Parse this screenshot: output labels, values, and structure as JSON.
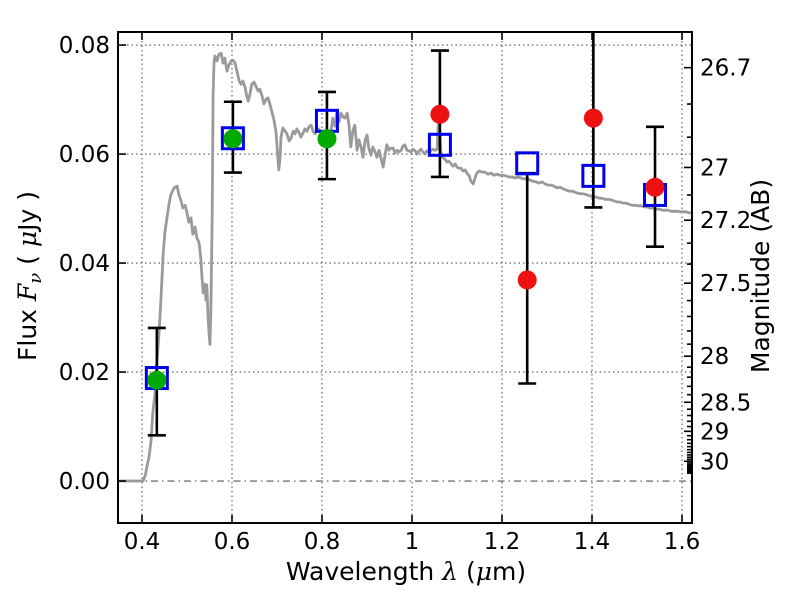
{
  "chart_data": {
    "type": "line+scatter",
    "title": "",
    "description": "Galaxy SED: gray model spectrum, green filled circles (observed optical photometry), red filled circles (observed IR photometry), blue open squares (model photometry), black error bars; flux vs wavelength with AB magnitude axis on the right",
    "xlabel_parts": [
      {
        "text": "Wavelength ",
        "style": "plain"
      },
      {
        "text": "λ",
        "style": "math"
      },
      {
        "text": " (",
        "style": "plain"
      },
      {
        "text": "μ",
        "style": "math"
      },
      {
        "text": "m)",
        "style": "plain"
      }
    ],
    "ylabel_left_parts": [
      {
        "text": "Flux ",
        "style": "plain"
      },
      {
        "text": "F",
        "style": "math"
      },
      {
        "text": "ν",
        "style": "mathsub"
      },
      {
        "text": " ( ",
        "style": "plain"
      },
      {
        "text": "μ",
        "style": "math"
      },
      {
        "text": "Jy )",
        "style": "plain"
      }
    ],
    "ylabel_right": "Magnitude (AB)",
    "xlim": [
      0.3467,
      1.6222
    ],
    "ylim": [
      -0.0077,
      0.0824
    ],
    "ab_zeropoint_ujy": 23.9,
    "x_ticks": [
      {
        "label": "0.4",
        "value": 0.4
      },
      {
        "label": "0.6",
        "value": 0.6
      },
      {
        "label": "0.8",
        "value": 0.8
      },
      {
        "label": "1",
        "value": 1.0
      },
      {
        "label": "1.2",
        "value": 1.2
      },
      {
        "label": "1.4",
        "value": 1.4
      },
      {
        "label": "1.6",
        "value": 1.6
      }
    ],
    "y_ticks_left": [
      {
        "label": "0.00",
        "value": 0.0
      },
      {
        "label": "0.02",
        "value": 0.02
      },
      {
        "label": "0.04",
        "value": 0.04
      },
      {
        "label": "0.06",
        "value": 0.06
      },
      {
        "label": "0.08",
        "value": 0.08
      }
    ],
    "y_ticks_right": [
      {
        "label": "26.7",
        "mag": 26.7
      },
      {
        "label": "27",
        "mag": 27.0
      },
      {
        "label": "27.2",
        "mag": 27.2
      },
      {
        "label": "27.5",
        "mag": 27.5
      },
      {
        "label": "28",
        "mag": 28.0
      },
      {
        "label": "28.5",
        "mag": 28.5
      },
      {
        "label": "29",
        "mag": 29.0
      },
      {
        "label": "30",
        "mag": 30.0
      }
    ],
    "y_minor_ticks_right_mag": [
      26.8,
      26.9,
      27.1,
      27.3,
      27.4,
      27.6,
      27.7,
      27.8,
      27.9,
      28.1,
      28.2,
      28.3,
      28.4,
      28.6,
      28.7,
      28.8,
      28.9,
      29.1,
      29.2,
      29.3,
      29.4,
      29.5,
      29.6,
      29.7,
      29.8,
      29.9,
      30.1,
      30.2,
      30.3,
      30.4,
      30.5,
      30.6,
      30.7,
      30.8,
      30.9,
      31.0
    ],
    "grid": {
      "x_values": [
        0.4,
        0.6,
        0.8,
        1.0,
        1.2,
        1.4,
        1.6
      ],
      "y_dotted_values": [
        0.02,
        0.04,
        0.06,
        0.08
      ],
      "y_dashdot_value": 0.0
    },
    "colors": {
      "spectrum": "#9a9a9a",
      "square_edge": "#0000ee",
      "green": "#00aa00",
      "red": "#ee1111",
      "errorbar": "#000000",
      "text": "#000000",
      "background": "#ffffff"
    },
    "points": [
      {
        "x": 0.433,
        "square": 0.0189,
        "circle": 0.0185,
        "circle_color": "green",
        "err_lo": 0.0084,
        "err_hi": 0.0281,
        "cap_lo": true,
        "cap_hi": true
      },
      {
        "x": 0.602,
        "square": 0.0629,
        "circle": 0.0628,
        "circle_color": "green",
        "err_lo": 0.0566,
        "err_hi": 0.0696,
        "cap_lo": true,
        "cap_hi": true
      },
      {
        "x": 0.811,
        "square": 0.0661,
        "circle": 0.0628,
        "circle_color": "green",
        "err_lo": 0.0554,
        "err_hi": 0.0714,
        "cap_lo": true,
        "cap_hi": true
      },
      {
        "x": 1.062,
        "square": 0.0617,
        "circle": 0.0673,
        "circle_color": "red",
        "err_lo": 0.0558,
        "err_hi": 0.079,
        "cap_lo": true,
        "cap_hi": true
      },
      {
        "x": 1.256,
        "square": 0.0583,
        "circle": 0.0369,
        "circle_color": "red",
        "err_lo": 0.0179,
        "err_hi": 0.0565,
        "cap_lo": true,
        "cap_hi": true
      },
      {
        "x": 1.403,
        "square": 0.056,
        "circle": 0.0666,
        "circle_color": "red",
        "err_lo": 0.0502,
        "err_hi": 0.092,
        "cap_lo": true,
        "cap_hi": false
      },
      {
        "x": 1.54,
        "square": 0.0525,
        "circle": 0.0539,
        "circle_color": "red",
        "err_lo": 0.043,
        "err_hi": 0.065,
        "cap_lo": true,
        "cap_hi": true
      }
    ],
    "spectrum": [
      [
        0.347,
        0
      ],
      [
        0.402,
        0
      ],
      [
        0.407,
        0.0009
      ],
      [
        0.411,
        0.0026
      ],
      [
        0.416,
        0.0046
      ],
      [
        0.42,
        0.0073
      ],
      [
        0.424,
        0.0125
      ],
      [
        0.429,
        0.016
      ],
      [
        0.433,
        0.0215
      ],
      [
        0.438,
        0.0273
      ],
      [
        0.442,
        0.0332
      ],
      [
        0.447,
        0.0415
      ],
      [
        0.451,
        0.0457
      ],
      [
        0.456,
        0.0486
      ],
      [
        0.46,
        0.0508
      ],
      [
        0.464,
        0.0525
      ],
      [
        0.469,
        0.0534
      ],
      [
        0.473,
        0.0539
      ],
      [
        0.478,
        0.0541
      ],
      [
        0.482,
        0.0525
      ],
      [
        0.487,
        0.0514
      ],
      [
        0.491,
        0.0501
      ],
      [
        0.496,
        0.0506
      ],
      [
        0.5,
        0.0492
      ],
      [
        0.504,
        0.0475
      ],
      [
        0.509,
        0.0483
      ],
      [
        0.513,
        0.0453
      ],
      [
        0.518,
        0.0466
      ],
      [
        0.522,
        0.0446
      ],
      [
        0.527,
        0.0437
      ],
      [
        0.531,
        0.0407
      ],
      [
        0.533,
        0.0378
      ],
      [
        0.536,
        0.0345
      ],
      [
        0.54,
        0.0361
      ],
      [
        0.542,
        0.0332
      ],
      [
        0.544,
        0.036
      ],
      [
        0.547,
        0.0299
      ],
      [
        0.549,
        0.0273
      ],
      [
        0.551,
        0.0251
      ],
      [
        0.553,
        0.0305
      ],
      [
        0.556,
        0.0488
      ],
      [
        0.558,
        0.0708
      ],
      [
        0.56,
        0.0767
      ],
      [
        0.562,
        0.078
      ],
      [
        0.567,
        0.0771
      ],
      [
        0.571,
        0.0783
      ],
      [
        0.576,
        0.0785
      ],
      [
        0.58,
        0.0767
      ],
      [
        0.584,
        0.0776
      ],
      [
        0.589,
        0.0752
      ],
      [
        0.593,
        0.0763
      ],
      [
        0.598,
        0.0771
      ],
      [
        0.602,
        0.0772
      ],
      [
        0.607,
        0.0767
      ],
      [
        0.611,
        0.0752
      ],
      [
        0.616,
        0.0734
      ],
      [
        0.62,
        0.0728
      ],
      [
        0.624,
        0.0734
      ],
      [
        0.629,
        0.0723
      ],
      [
        0.633,
        0.0706
      ],
      [
        0.636,
        0.0697
      ],
      [
        0.64,
        0.071
      ],
      [
        0.644,
        0.0728
      ],
      [
        0.649,
        0.0732
      ],
      [
        0.653,
        0.0725
      ],
      [
        0.658,
        0.0716
      ],
      [
        0.662,
        0.0719
      ],
      [
        0.667,
        0.0706
      ],
      [
        0.671,
        0.0692
      ],
      [
        0.676,
        0.0701
      ],
      [
        0.68,
        0.0703
      ],
      [
        0.684,
        0.0692
      ],
      [
        0.689,
        0.0677
      ],
      [
        0.693,
        0.0664
      ],
      [
        0.698,
        0.0639
      ],
      [
        0.7,
        0.0615
      ],
      [
        0.702,
        0.0593
      ],
      [
        0.704,
        0.0571
      ],
      [
        0.707,
        0.0594
      ],
      [
        0.709,
        0.0631
      ],
      [
        0.713,
        0.0648
      ],
      [
        0.718,
        0.0642
      ],
      [
        0.722,
        0.0637
      ],
      [
        0.727,
        0.0624
      ],
      [
        0.731,
        0.0629
      ],
      [
        0.736,
        0.0642
      ],
      [
        0.74,
        0.0637
      ],
      [
        0.744,
        0.0646
      ],
      [
        0.749,
        0.064
      ],
      [
        0.753,
        0.0631
      ],
      [
        0.758,
        0.0639
      ],
      [
        0.762,
        0.0646
      ],
      [
        0.767,
        0.0642
      ],
      [
        0.771,
        0.065
      ],
      [
        0.776,
        0.0653
      ],
      [
        0.78,
        0.0642
      ],
      [
        0.784,
        0.0637
      ],
      [
        0.789,
        0.0642
      ],
      [
        0.793,
        0.0646
      ],
      [
        0.798,
        0.0639
      ],
      [
        0.802,
        0.0633
      ],
      [
        0.807,
        0.0624
      ],
      [
        0.811,
        0.0618
      ],
      [
        0.816,
        0.0628
      ],
      [
        0.82,
        0.0644
      ],
      [
        0.824,
        0.0666
      ],
      [
        0.829,
        0.0651
      ],
      [
        0.833,
        0.0677
      ],
      [
        0.838,
        0.0659
      ],
      [
        0.842,
        0.0675
      ],
      [
        0.847,
        0.0668
      ],
      [
        0.851,
        0.0666
      ],
      [
        0.856,
        0.0675
      ],
      [
        0.86,
        0.0653
      ],
      [
        0.864,
        0.0613
      ],
      [
        0.869,
        0.0644
      ],
      [
        0.873,
        0.0653
      ],
      [
        0.878,
        0.0607
      ],
      [
        0.882,
        0.0626
      ],
      [
        0.887,
        0.0613
      ],
      [
        0.891,
        0.0594
      ],
      [
        0.896,
        0.0626
      ],
      [
        0.9,
        0.0635
      ],
      [
        0.904,
        0.0611
      ],
      [
        0.909,
        0.0598
      ],
      [
        0.913,
        0.0613
      ],
      [
        0.918,
        0.0604
      ],
      [
        0.922,
        0.0594
      ],
      [
        0.927,
        0.0607
      ],
      [
        0.931,
        0.0593
      ],
      [
        0.936,
        0.0576
      ],
      [
        0.94,
        0.0598
      ],
      [
        0.944,
        0.0617
      ],
      [
        0.949,
        0.0607
      ],
      [
        0.953,
        0.0611
      ],
      [
        0.958,
        0.0611
      ],
      [
        0.962,
        0.0602
      ],
      [
        0.967,
        0.0607
      ],
      [
        0.971,
        0.0604
      ],
      [
        0.976,
        0.0607
      ],
      [
        0.98,
        0.0615
      ],
      [
        0.984,
        0.0617
      ],
      [
        0.989,
        0.0607
      ],
      [
        0.993,
        0.0606
      ],
      [
        0.998,
        0.0604
      ],
      [
        1.002,
        0.0609
      ],
      [
        1.007,
        0.0606
      ],
      [
        1.011,
        0.06
      ],
      [
        1.016,
        0.0606
      ],
      [
        1.02,
        0.0609
      ],
      [
        1.024,
        0.0604
      ],
      [
        1.029,
        0.06
      ],
      [
        1.033,
        0.0606
      ],
      [
        1.038,
        0.0602
      ],
      [
        1.042,
        0.0607
      ],
      [
        1.047,
        0.0609
      ],
      [
        1.051,
        0.0607
      ],
      [
        1.056,
        0.0609
      ],
      [
        1.058,
        0.0648
      ],
      [
        1.06,
        0.0664
      ],
      [
        1.062,
        0.0635
      ],
      [
        1.064,
        0.0604
      ],
      [
        1.069,
        0.0593
      ],
      [
        1.073,
        0.0591
      ],
      [
        1.078,
        0.0585
      ],
      [
        1.082,
        0.0587
      ],
      [
        1.087,
        0.0582
      ],
      [
        1.091,
        0.0578
      ],
      [
        1.096,
        0.0582
      ],
      [
        1.1,
        0.0576
      ],
      [
        1.104,
        0.0574
      ],
      [
        1.109,
        0.0574
      ],
      [
        1.113,
        0.0569
      ],
      [
        1.118,
        0.0571
      ],
      [
        1.122,
        0.0565
      ],
      [
        1.127,
        0.056
      ],
      [
        1.131,
        0.055
      ],
      [
        1.136,
        0.0545
      ],
      [
        1.14,
        0.0556
      ],
      [
        1.144,
        0.0565
      ],
      [
        1.149,
        0.0569
      ],
      [
        1.156,
        0.0567
      ],
      [
        1.162,
        0.0567
      ],
      [
        1.169,
        0.0563
      ],
      [
        1.176,
        0.0565
      ],
      [
        1.182,
        0.0561
      ],
      [
        1.189,
        0.0563
      ],
      [
        1.196,
        0.0561
      ],
      [
        1.202,
        0.0561
      ],
      [
        1.209,
        0.056
      ],
      [
        1.216,
        0.0558
      ],
      [
        1.222,
        0.0558
      ],
      [
        1.229,
        0.0556
      ],
      [
        1.236,
        0.0558
      ],
      [
        1.242,
        0.0556
      ],
      [
        1.249,
        0.0554
      ],
      [
        1.256,
        0.0556
      ],
      [
        1.262,
        0.0552
      ],
      [
        1.269,
        0.055
      ],
      [
        1.276,
        0.0549
      ],
      [
        1.282,
        0.0547
      ],
      [
        1.289,
        0.0549
      ],
      [
        1.296,
        0.0545
      ],
      [
        1.302,
        0.0543
      ],
      [
        1.309,
        0.0543
      ],
      [
        1.316,
        0.0541
      ],
      [
        1.322,
        0.0538
      ],
      [
        1.329,
        0.0539
      ],
      [
        1.336,
        0.0536
      ],
      [
        1.342,
        0.0534
      ],
      [
        1.349,
        0.0532
      ],
      [
        1.356,
        0.0532
      ],
      [
        1.362,
        0.053
      ],
      [
        1.369,
        0.0528
      ],
      [
        1.376,
        0.0527
      ],
      [
        1.382,
        0.0527
      ],
      [
        1.389,
        0.0525
      ],
      [
        1.396,
        0.0523
      ],
      [
        1.402,
        0.0521
      ],
      [
        1.409,
        0.0521
      ],
      [
        1.416,
        0.0519
      ],
      [
        1.422,
        0.0519
      ],
      [
        1.429,
        0.0517
      ],
      [
        1.436,
        0.0517
      ],
      [
        1.442,
        0.0516
      ],
      [
        1.449,
        0.0514
      ],
      [
        1.456,
        0.0512
      ],
      [
        1.462,
        0.0512
      ],
      [
        1.469,
        0.051
      ],
      [
        1.476,
        0.051
      ],
      [
        1.482,
        0.0508
      ],
      [
        1.489,
        0.0506
      ],
      [
        1.496,
        0.0506
      ],
      [
        1.502,
        0.0505
      ],
      [
        1.509,
        0.0505
      ],
      [
        1.516,
        0.0503
      ],
      [
        1.522,
        0.0503
      ],
      [
        1.529,
        0.0501
      ],
      [
        1.536,
        0.0501
      ],
      [
        1.542,
        0.0499
      ],
      [
        1.549,
        0.0499
      ],
      [
        1.556,
        0.0497
      ],
      [
        1.562,
        0.0497
      ],
      [
        1.569,
        0.0497
      ],
      [
        1.576,
        0.0495
      ],
      [
        1.582,
        0.0495
      ],
      [
        1.589,
        0.0495
      ],
      [
        1.596,
        0.0494
      ],
      [
        1.602,
        0.0494
      ],
      [
        1.609,
        0.0494
      ],
      [
        1.616,
        0.0492
      ],
      [
        1.622,
        0.0492
      ]
    ]
  }
}
